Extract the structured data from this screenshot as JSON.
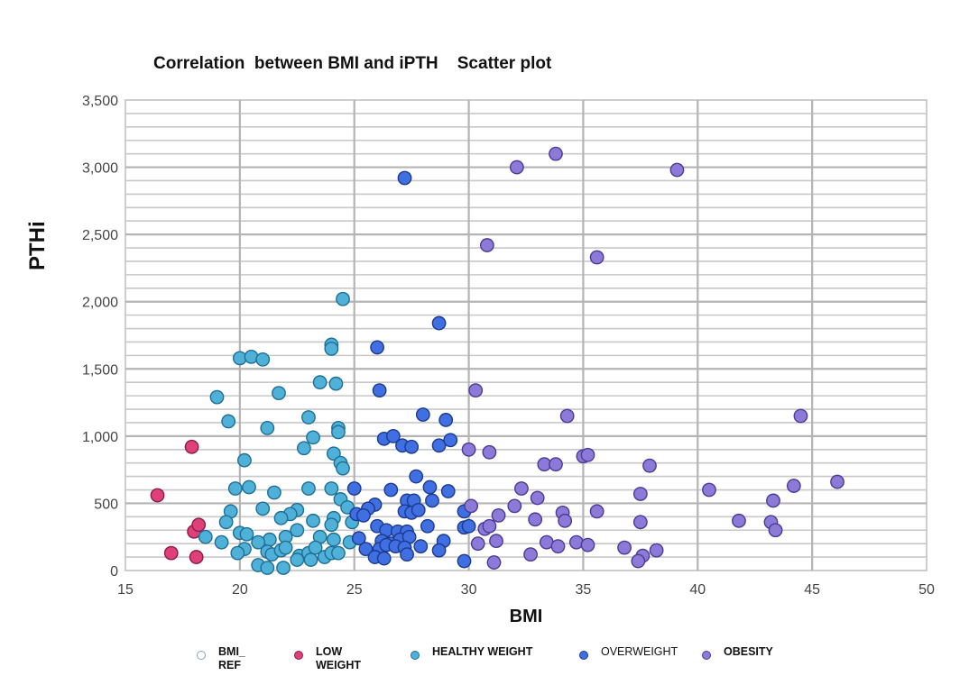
{
  "title": "Correlation  between BMI and iPTH    Scatter plot",
  "chart_data": {
    "type": "scatter",
    "title": "Correlation  between BMI and iPTH    Scatter plot",
    "xlabel": "BMI",
    "ylabel": "PTHi",
    "xlim": [
      15,
      50
    ],
    "ylim": [
      0,
      3500
    ],
    "xticks": [
      "15",
      "20",
      "25",
      "30",
      "35",
      "40",
      "45",
      "50"
    ],
    "yticks": [
      "0",
      "500",
      "1,000",
      "1,500",
      "2,000",
      "2,500",
      "3,000",
      "3,500"
    ],
    "grid": true,
    "legend_position": "bottom",
    "series": [
      {
        "name": "BMI_ REF",
        "color": "#ffffff",
        "stroke": "#8aa0b0",
        "points": []
      },
      {
        "name": "LOW WEIGHT",
        "color": "#e0407a",
        "stroke": "#8a1c46",
        "points": [
          [
            16.4,
            560
          ],
          [
            17.9,
            920
          ],
          [
            18.0,
            290
          ],
          [
            18.2,
            340
          ],
          [
            17.0,
            130
          ],
          [
            18.1,
            100
          ]
        ]
      },
      {
        "name": "HEALTHY WEIGHT",
        "color": "#4fb0d8",
        "stroke": "#1f6f95",
        "points": [
          [
            24.5,
            2020
          ],
          [
            20.0,
            1580
          ],
          [
            20.5,
            1590
          ],
          [
            21.0,
            1570
          ],
          [
            24.0,
            1680
          ],
          [
            24.0,
            1650
          ],
          [
            19.0,
            1290
          ],
          [
            21.7,
            1320
          ],
          [
            23.5,
            1400
          ],
          [
            24.2,
            1390
          ],
          [
            19.5,
            1110
          ],
          [
            21.2,
            1060
          ],
          [
            23.0,
            1140
          ],
          [
            24.3,
            1060
          ],
          [
            24.3,
            1030
          ],
          [
            22.8,
            910
          ],
          [
            23.2,
            990
          ],
          [
            24.1,
            870
          ],
          [
            24.4,
            800
          ],
          [
            24.5,
            760
          ],
          [
            20.2,
            820
          ],
          [
            19.8,
            610
          ],
          [
            20.4,
            620
          ],
          [
            21.5,
            580
          ],
          [
            23.0,
            610
          ],
          [
            24.0,
            610
          ],
          [
            24.4,
            530
          ],
          [
            24.7,
            470
          ],
          [
            19.6,
            440
          ],
          [
            21.0,
            460
          ],
          [
            22.5,
            450
          ],
          [
            22.2,
            420
          ],
          [
            21.8,
            390
          ],
          [
            24.1,
            390
          ],
          [
            24.9,
            360
          ],
          [
            19.4,
            360
          ],
          [
            23.2,
            370
          ],
          [
            24.0,
            340
          ],
          [
            22.5,
            300
          ],
          [
            20.0,
            280
          ],
          [
            18.5,
            250
          ],
          [
            19.2,
            210
          ],
          [
            20.3,
            270
          ],
          [
            21.3,
            230
          ],
          [
            22.0,
            250
          ],
          [
            23.5,
            250
          ],
          [
            24.1,
            230
          ],
          [
            24.8,
            210
          ],
          [
            20.2,
            160
          ],
          [
            20.8,
            210
          ],
          [
            21.2,
            140
          ],
          [
            21.4,
            120
          ],
          [
            21.8,
            150
          ],
          [
            22.0,
            170
          ],
          [
            22.6,
            110
          ],
          [
            23.0,
            130
          ],
          [
            23.3,
            170
          ],
          [
            23.7,
            100
          ],
          [
            24.0,
            130
          ],
          [
            24.3,
            130
          ],
          [
            19.9,
            130
          ],
          [
            20.8,
            40
          ],
          [
            21.2,
            20
          ],
          [
            21.9,
            20
          ],
          [
            22.5,
            80
          ],
          [
            23.1,
            80
          ]
        ]
      },
      {
        "name": "OVERWEIGHT",
        "color": "#3f6fe0",
        "stroke": "#1c3a90",
        "points": [
          [
            27.2,
            2920
          ],
          [
            28.7,
            1840
          ],
          [
            26.0,
            1660
          ],
          [
            26.1,
            1340
          ],
          [
            28.0,
            1160
          ],
          [
            29.0,
            1120
          ],
          [
            26.3,
            980
          ],
          [
            26.7,
            1000
          ],
          [
            27.1,
            930
          ],
          [
            27.5,
            920
          ],
          [
            28.7,
            930
          ],
          [
            29.2,
            970
          ],
          [
            27.7,
            700
          ],
          [
            25.0,
            610
          ],
          [
            26.6,
            600
          ],
          [
            28.3,
            620
          ],
          [
            25.9,
            490
          ],
          [
            27.3,
            520
          ],
          [
            27.6,
            520
          ],
          [
            28.4,
            520
          ],
          [
            29.1,
            590
          ],
          [
            25.1,
            420
          ],
          [
            25.6,
            460
          ],
          [
            27.2,
            440
          ],
          [
            27.5,
            430
          ],
          [
            27.8,
            450
          ],
          [
            29.8,
            440
          ],
          [
            25.4,
            410
          ],
          [
            26.0,
            330
          ],
          [
            26.4,
            300
          ],
          [
            26.9,
            290
          ],
          [
            27.3,
            290
          ],
          [
            28.2,
            330
          ],
          [
            29.8,
            320
          ],
          [
            30.0,
            330
          ],
          [
            25.2,
            240
          ],
          [
            26.2,
            220
          ],
          [
            26.6,
            200
          ],
          [
            27.0,
            230
          ],
          [
            27.4,
            250
          ],
          [
            28.9,
            220
          ],
          [
            25.5,
            160
          ],
          [
            26.1,
            160
          ],
          [
            26.4,
            190
          ],
          [
            26.8,
            180
          ],
          [
            27.2,
            170
          ],
          [
            27.9,
            180
          ],
          [
            28.7,
            150
          ],
          [
            25.9,
            100
          ],
          [
            26.3,
            90
          ],
          [
            27.3,
            120
          ],
          [
            29.8,
            70
          ]
        ]
      },
      {
        "name": "OBESITY",
        "color": "#8d7ad8",
        "stroke": "#4a3b95",
        "points": [
          [
            33.8,
            3100
          ],
          [
            32.1,
            3000
          ],
          [
            39.1,
            2980
          ],
          [
            30.8,
            2420
          ],
          [
            35.6,
            2330
          ],
          [
            30.3,
            1340
          ],
          [
            34.3,
            1150
          ],
          [
            44.5,
            1150
          ],
          [
            30.0,
            900
          ],
          [
            30.9,
            880
          ],
          [
            35.0,
            850
          ],
          [
            35.2,
            860
          ],
          [
            33.3,
            790
          ],
          [
            33.8,
            790
          ],
          [
            37.9,
            780
          ],
          [
            32.3,
            610
          ],
          [
            33.0,
            540
          ],
          [
            40.5,
            600
          ],
          [
            37.5,
            570
          ],
          [
            44.2,
            630
          ],
          [
            46.1,
            660
          ],
          [
            43.3,
            520
          ],
          [
            30.1,
            480
          ],
          [
            32.0,
            480
          ],
          [
            31.3,
            410
          ],
          [
            34.1,
            430
          ],
          [
            35.6,
            440
          ],
          [
            32.9,
            380
          ],
          [
            34.2,
            370
          ],
          [
            37.5,
            360
          ],
          [
            41.8,
            370
          ],
          [
            43.2,
            360
          ],
          [
            43.4,
            300
          ],
          [
            30.7,
            310
          ],
          [
            30.9,
            330
          ],
          [
            30.4,
            200
          ],
          [
            31.2,
            220
          ],
          [
            33.4,
            210
          ],
          [
            33.9,
            180
          ],
          [
            34.7,
            210
          ],
          [
            35.2,
            190
          ],
          [
            36.8,
            170
          ],
          [
            37.6,
            110
          ],
          [
            38.2,
            150
          ],
          [
            32.7,
            120
          ],
          [
            31.1,
            60
          ],
          [
            37.4,
            70
          ]
        ]
      }
    ]
  }
}
